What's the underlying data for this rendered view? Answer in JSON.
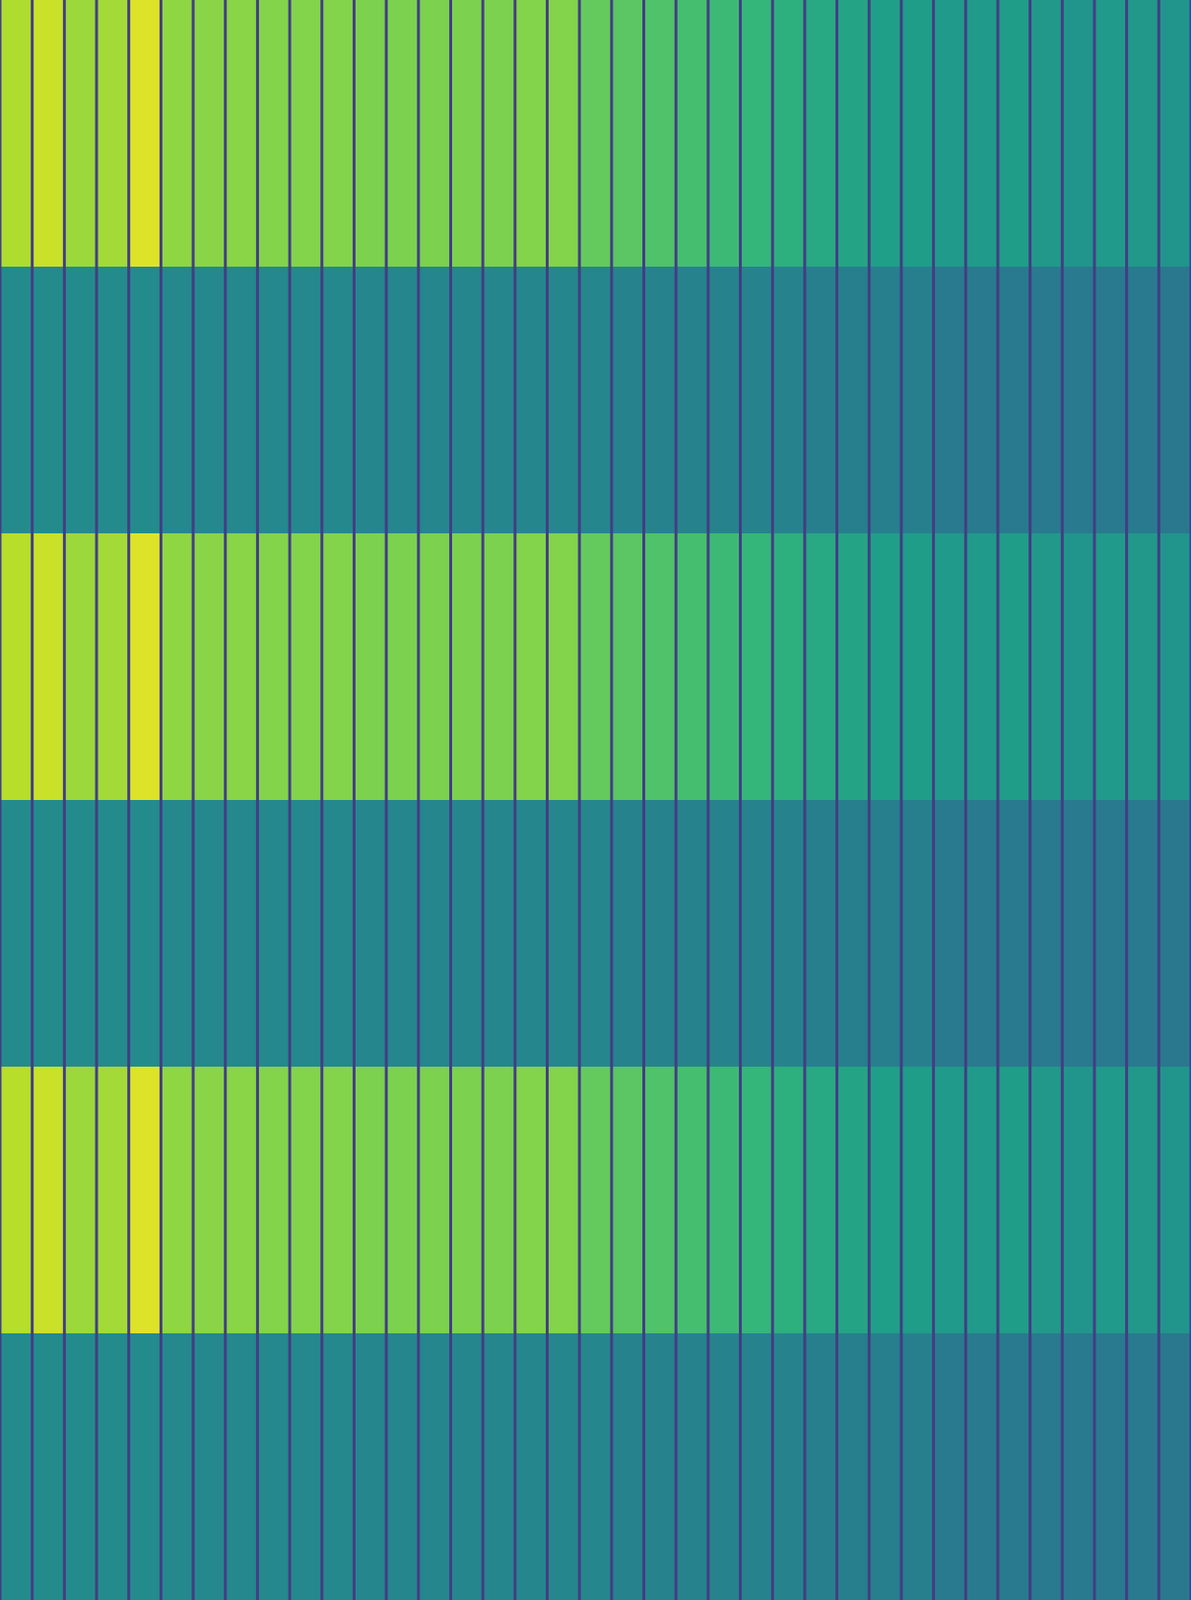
{
  "chart_data": {
    "type": "heatmap",
    "xlim": [
      0,
      37
    ],
    "ylim": [
      0,
      6
    ],
    "zlim": [
      0,
      1
    ],
    "tick_labels": false,
    "grid": false,
    "cells": [
      [
        0.88,
        0.92,
        0.85,
        0.86,
        0.95,
        0.83,
        0.82,
        0.82,
        0.81,
        0.81,
        0.81,
        0.8,
        0.8,
        0.8,
        0.8,
        0.8,
        0.81,
        0.81,
        0.76,
        0.74,
        0.72,
        0.7,
        0.68,
        0.66,
        0.63,
        0.6,
        0.58,
        0.56,
        0.55,
        0.54,
        0.54,
        0.55,
        0.53,
        0.52,
        0.54,
        0.53,
        0.52
      ],
      [
        0.48,
        0.48,
        0.48,
        0.48,
        0.48,
        0.47,
        0.47,
        0.47,
        0.47,
        0.47,
        0.47,
        0.46,
        0.46,
        0.46,
        0.46,
        0.46,
        0.46,
        0.46,
        0.46,
        0.45,
        0.45,
        0.45,
        0.45,
        0.45,
        0.45,
        0.43,
        0.43,
        0.43,
        0.43,
        0.41,
        0.41,
        0.41,
        0.41,
        0.41,
        0.41,
        0.41,
        0.4
      ],
      [
        0.89,
        0.92,
        0.85,
        0.86,
        0.95,
        0.83,
        0.82,
        0.82,
        0.81,
        0.81,
        0.81,
        0.8,
        0.8,
        0.8,
        0.8,
        0.8,
        0.81,
        0.81,
        0.76,
        0.74,
        0.72,
        0.7,
        0.68,
        0.66,
        0.63,
        0.6,
        0.58,
        0.56,
        0.55,
        0.54,
        0.54,
        0.55,
        0.53,
        0.52,
        0.54,
        0.53,
        0.52
      ],
      [
        0.48,
        0.48,
        0.48,
        0.48,
        0.48,
        0.47,
        0.47,
        0.47,
        0.47,
        0.47,
        0.47,
        0.46,
        0.46,
        0.46,
        0.46,
        0.46,
        0.46,
        0.46,
        0.46,
        0.45,
        0.45,
        0.45,
        0.45,
        0.45,
        0.45,
        0.43,
        0.43,
        0.43,
        0.43,
        0.41,
        0.41,
        0.41,
        0.41,
        0.41,
        0.41,
        0.41,
        0.4
      ],
      [
        0.89,
        0.92,
        0.85,
        0.86,
        0.95,
        0.83,
        0.82,
        0.82,
        0.81,
        0.81,
        0.81,
        0.8,
        0.8,
        0.8,
        0.8,
        0.8,
        0.81,
        0.81,
        0.76,
        0.74,
        0.72,
        0.7,
        0.68,
        0.66,
        0.63,
        0.6,
        0.58,
        0.56,
        0.55,
        0.54,
        0.54,
        0.55,
        0.53,
        0.52,
        0.54,
        0.53,
        0.52
      ],
      [
        0.48,
        0.48,
        0.48,
        0.48,
        0.48,
        0.47,
        0.47,
        0.47,
        0.47,
        0.47,
        0.47,
        0.46,
        0.46,
        0.46,
        0.46,
        0.46,
        0.46,
        0.46,
        0.46,
        0.45,
        0.45,
        0.45,
        0.45,
        0.45,
        0.45,
        0.43,
        0.43,
        0.43,
        0.43,
        0.41,
        0.41,
        0.41,
        0.41,
        0.41,
        0.41,
        0.41,
        0.4
      ]
    ]
  }
}
